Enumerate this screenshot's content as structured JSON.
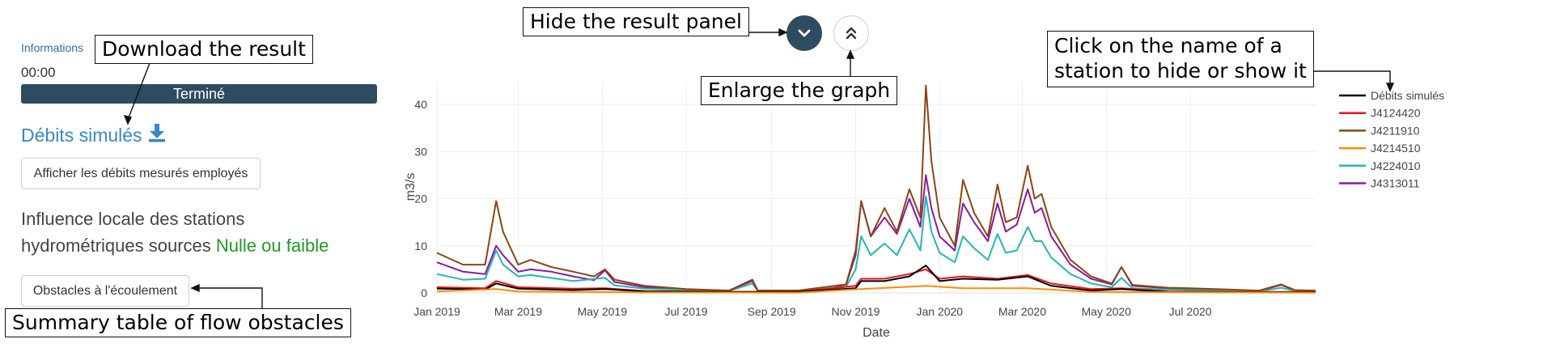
{
  "left_panel": {
    "info_label": "Informations",
    "timer": "00:00",
    "status": "Terminé",
    "result_link": "Débits simulés",
    "measured_button": "Afficher les débits mesurés employés",
    "influence_line1": "Influence locale des stations",
    "influence_line2": "hydrométriques sources",
    "influence_level": "Nulle ou faible",
    "influence_level_color": "#1f9a1f",
    "obstacles_button": "Obstacles à l'écoulement"
  },
  "controls": {
    "hide_icon": "chevron-down-icon",
    "enlarge_icon": "double-chevron-up-icon"
  },
  "callouts": {
    "download": "Download the result",
    "hide_panel": "Hide the result panel",
    "enlarge": "Enlarge the graph",
    "legend_line1": "Click on the name of a",
    "legend_line2": "station to hide or show it",
    "obstacles": "Summary table of flow obstacles"
  },
  "chart_data": {
    "type": "line",
    "xlabel": "Date",
    "ylabel": "m3/s",
    "ylim": [
      0,
      45
    ],
    "yticks": [
      0,
      10,
      20,
      30,
      40
    ],
    "x_range": [
      "2019-01-01",
      "2020-09-30"
    ],
    "xticks": [
      {
        "date": "2019-01-01",
        "label": "Jan 2019"
      },
      {
        "date": "2019-03-01",
        "label": "Mar 2019"
      },
      {
        "date": "2019-05-01",
        "label": "May 2019"
      },
      {
        "date": "2019-07-01",
        "label": "Jul 2019"
      },
      {
        "date": "2019-09-01",
        "label": "Sep 2019"
      },
      {
        "date": "2019-11-01",
        "label": "Nov 2019"
      },
      {
        "date": "2020-01-01",
        "label": "Jan 2020"
      },
      {
        "date": "2020-03-01",
        "label": "Mar 2020"
      },
      {
        "date": "2020-05-01",
        "label": "May 2020"
      },
      {
        "date": "2020-07-01",
        "label": "Jul 2020"
      }
    ],
    "grid": true,
    "legend_position": "right",
    "series": [
      {
        "name": "J4313011",
        "color": "#8b1a9b",
        "points": [
          [
            "2019-01-01",
            6.5
          ],
          [
            "2019-01-20",
            4.5
          ],
          [
            "2019-02-05",
            4.0
          ],
          [
            "2019-02-13",
            10.0
          ],
          [
            "2019-02-18",
            8.0
          ],
          [
            "2019-03-01",
            4.5
          ],
          [
            "2019-03-10",
            5.0
          ],
          [
            "2019-03-25",
            4.5
          ],
          [
            "2019-04-10",
            3.5
          ],
          [
            "2019-04-25",
            2.7
          ],
          [
            "2019-05-03",
            4.8
          ],
          [
            "2019-05-10",
            2.3
          ],
          [
            "2019-06-01",
            1.2
          ],
          [
            "2019-07-01",
            0.7
          ],
          [
            "2019-08-01",
            0.5
          ],
          [
            "2019-08-18",
            2.8
          ],
          [
            "2019-08-22",
            0.5
          ],
          [
            "2019-09-20",
            0.5
          ],
          [
            "2019-10-10",
            0.6
          ],
          [
            "2019-10-25",
            1.8
          ],
          [
            "2019-11-01",
            8.0
          ],
          [
            "2019-11-05",
            19.5
          ],
          [
            "2019-11-12",
            12.0
          ],
          [
            "2019-11-22",
            16.0
          ],
          [
            "2019-12-01",
            12.5
          ],
          [
            "2019-12-10",
            20.0
          ],
          [
            "2019-12-18",
            14.0
          ],
          [
            "2019-12-22",
            25.0
          ],
          [
            "2019-12-26",
            18.0
          ],
          [
            "2020-01-01",
            12.0
          ],
          [
            "2020-01-12",
            9.0
          ],
          [
            "2020-01-18",
            19.0
          ],
          [
            "2020-01-26",
            15.0
          ],
          [
            "2020-02-05",
            11.0
          ],
          [
            "2020-02-12",
            19.0
          ],
          [
            "2020-02-18",
            13.0
          ],
          [
            "2020-02-26",
            14.5
          ],
          [
            "2020-03-05",
            22.0
          ],
          [
            "2020-03-10",
            17.0
          ],
          [
            "2020-03-15",
            18.0
          ],
          [
            "2020-03-22",
            12.0
          ],
          [
            "2020-04-05",
            6.0
          ],
          [
            "2020-04-20",
            3.0
          ],
          [
            "2020-05-05",
            1.8
          ],
          [
            "2020-05-12",
            5.5
          ],
          [
            "2020-05-20",
            1.5
          ],
          [
            "2020-06-15",
            1.0
          ],
          [
            "2020-07-01",
            0.8
          ],
          [
            "2020-07-28",
            0.6
          ],
          [
            "2020-08-20",
            0.4
          ],
          [
            "2020-09-05",
            1.7
          ],
          [
            "2020-09-15",
            0.5
          ],
          [
            "2020-09-30",
            0.4
          ]
        ]
      },
      {
        "name": "J4224010",
        "color": "#25b5b5",
        "points": [
          [
            "2019-01-01",
            4.0
          ],
          [
            "2019-01-20",
            2.8
          ],
          [
            "2019-02-05",
            3.0
          ],
          [
            "2019-02-13",
            9.0
          ],
          [
            "2019-02-18",
            6.0
          ],
          [
            "2019-03-01",
            3.5
          ],
          [
            "2019-03-10",
            3.8
          ],
          [
            "2019-04-10",
            2.5
          ],
          [
            "2019-05-03",
            3.2
          ],
          [
            "2019-05-10",
            1.6
          ],
          [
            "2019-06-01",
            0.9
          ],
          [
            "2019-07-01",
            0.6
          ],
          [
            "2019-08-01",
            0.4
          ],
          [
            "2019-08-18",
            2.0
          ],
          [
            "2019-08-22",
            0.4
          ],
          [
            "2019-09-20",
            0.4
          ],
          [
            "2019-10-25",
            1.3
          ],
          [
            "2019-11-01",
            5.0
          ],
          [
            "2019-11-05",
            12.0
          ],
          [
            "2019-11-12",
            8.0
          ],
          [
            "2019-11-22",
            10.5
          ],
          [
            "2019-12-01",
            8.0
          ],
          [
            "2019-12-10",
            13.5
          ],
          [
            "2019-12-18",
            9.0
          ],
          [
            "2019-12-22",
            20.5
          ],
          [
            "2019-12-26",
            13.0
          ],
          [
            "2020-01-01",
            8.5
          ],
          [
            "2020-01-12",
            6.5
          ],
          [
            "2020-01-18",
            12.0
          ],
          [
            "2020-01-26",
            9.5
          ],
          [
            "2020-02-05",
            7.0
          ],
          [
            "2020-02-12",
            12.5
          ],
          [
            "2020-02-18",
            8.5
          ],
          [
            "2020-02-26",
            9.0
          ],
          [
            "2020-03-05",
            14.0
          ],
          [
            "2020-03-10",
            11.0
          ],
          [
            "2020-03-15",
            11.0
          ],
          [
            "2020-03-22",
            7.5
          ],
          [
            "2020-04-05",
            4.0
          ],
          [
            "2020-04-20",
            2.0
          ],
          [
            "2020-05-05",
            1.2
          ],
          [
            "2020-05-12",
            3.2
          ],
          [
            "2020-05-20",
            1.0
          ],
          [
            "2020-06-15",
            0.7
          ],
          [
            "2020-07-01",
            0.6
          ],
          [
            "2020-08-20",
            0.3
          ],
          [
            "2020-09-05",
            1.1
          ],
          [
            "2020-09-15",
            0.4
          ],
          [
            "2020-09-30",
            0.3
          ]
        ]
      },
      {
        "name": "J4211910",
        "color": "#8b4513",
        "points": [
          [
            "2019-01-01",
            8.5
          ],
          [
            "2019-01-20",
            6.0
          ],
          [
            "2019-02-05",
            6.0
          ],
          [
            "2019-02-13",
            19.5
          ],
          [
            "2019-02-18",
            13.0
          ],
          [
            "2019-03-01",
            6.0
          ],
          [
            "2019-03-10",
            7.0
          ],
          [
            "2019-03-25",
            5.5
          ],
          [
            "2019-04-10",
            4.5
          ],
          [
            "2019-04-25",
            3.5
          ],
          [
            "2019-05-03",
            5.0
          ],
          [
            "2019-05-10",
            2.8
          ],
          [
            "2019-06-01",
            1.5
          ],
          [
            "2019-07-01",
            0.8
          ],
          [
            "2019-08-01",
            0.5
          ],
          [
            "2019-08-18",
            2.5
          ],
          [
            "2019-08-22",
            0.5
          ],
          [
            "2019-09-20",
            0.5
          ],
          [
            "2019-10-25",
            1.8
          ],
          [
            "2019-11-01",
            9.0
          ],
          [
            "2019-11-05",
            19.5
          ],
          [
            "2019-11-12",
            12.0
          ],
          [
            "2019-11-22",
            18.0
          ],
          [
            "2019-12-01",
            13.0
          ],
          [
            "2019-12-10",
            22.0
          ],
          [
            "2019-12-18",
            16.0
          ],
          [
            "2019-12-22",
            44.0
          ],
          [
            "2019-12-26",
            28.0
          ],
          [
            "2020-01-01",
            16.0
          ],
          [
            "2020-01-12",
            10.0
          ],
          [
            "2020-01-18",
            24.0
          ],
          [
            "2020-01-26",
            17.0
          ],
          [
            "2020-02-05",
            12.0
          ],
          [
            "2020-02-12",
            23.0
          ],
          [
            "2020-02-18",
            15.0
          ],
          [
            "2020-02-26",
            16.0
          ],
          [
            "2020-03-05",
            27.0
          ],
          [
            "2020-03-10",
            20.0
          ],
          [
            "2020-03-15",
            21.0
          ],
          [
            "2020-03-22",
            14.0
          ],
          [
            "2020-04-05",
            7.0
          ],
          [
            "2020-04-20",
            3.5
          ],
          [
            "2020-05-05",
            2.0
          ],
          [
            "2020-05-12",
            5.5
          ],
          [
            "2020-05-20",
            1.7
          ],
          [
            "2020-06-15",
            1.1
          ],
          [
            "2020-07-01",
            1.0
          ],
          [
            "2020-08-20",
            0.5
          ],
          [
            "2020-09-05",
            1.8
          ],
          [
            "2020-09-15",
            0.6
          ],
          [
            "2020-09-30",
            0.5
          ]
        ]
      },
      {
        "name": "J4124420",
        "color": "#e8151b",
        "points": [
          [
            "2019-01-01",
            1.2
          ],
          [
            "2019-02-05",
            1.0
          ],
          [
            "2019-02-13",
            2.5
          ],
          [
            "2019-03-01",
            1.2
          ],
          [
            "2019-04-10",
            0.9
          ],
          [
            "2019-05-03",
            1.0
          ],
          [
            "2019-06-01",
            0.4
          ],
          [
            "2019-08-01",
            0.2
          ],
          [
            "2019-09-20",
            0.2
          ],
          [
            "2019-11-01",
            1.5
          ],
          [
            "2019-11-05",
            3.0
          ],
          [
            "2019-11-22",
            3.0
          ],
          [
            "2019-12-10",
            4.0
          ],
          [
            "2019-12-22",
            5.0
          ],
          [
            "2020-01-01",
            3.0
          ],
          [
            "2020-01-18",
            3.5
          ],
          [
            "2020-02-12",
            3.0
          ],
          [
            "2020-03-05",
            3.8
          ],
          [
            "2020-03-22",
            2.0
          ],
          [
            "2020-04-20",
            0.8
          ],
          [
            "2020-05-12",
            1.0
          ],
          [
            "2020-06-15",
            0.3
          ],
          [
            "2020-08-20",
            0.2
          ],
          [
            "2020-09-30",
            0.2
          ]
        ]
      },
      {
        "name": "Débits simulés",
        "color": "#000000",
        "points": [
          [
            "2019-01-01",
            0.9
          ],
          [
            "2019-02-05",
            0.7
          ],
          [
            "2019-02-13",
            2.0
          ],
          [
            "2019-03-01",
            0.9
          ],
          [
            "2019-04-10",
            0.6
          ],
          [
            "2019-05-03",
            0.8
          ],
          [
            "2019-06-01",
            0.3
          ],
          [
            "2019-08-01",
            0.2
          ],
          [
            "2019-09-20",
            0.2
          ],
          [
            "2019-11-01",
            1.0
          ],
          [
            "2019-11-05",
            2.5
          ],
          [
            "2019-11-22",
            2.5
          ],
          [
            "2019-12-10",
            3.5
          ],
          [
            "2019-12-22",
            5.8
          ],
          [
            "2020-01-01",
            2.5
          ],
          [
            "2020-01-18",
            3.0
          ],
          [
            "2020-02-12",
            2.8
          ],
          [
            "2020-03-05",
            3.5
          ],
          [
            "2020-03-22",
            1.5
          ],
          [
            "2020-04-20",
            0.5
          ],
          [
            "2020-05-12",
            0.8
          ],
          [
            "2020-06-15",
            0.2
          ],
          [
            "2020-08-20",
            0.15
          ],
          [
            "2020-09-30",
            0.15
          ]
        ]
      },
      {
        "name": "J4214510",
        "color": "#ff8c00",
        "points": [
          [
            "2019-01-01",
            0.3
          ],
          [
            "2019-02-13",
            0.8
          ],
          [
            "2019-03-01",
            0.3
          ],
          [
            "2019-06-01",
            0.1
          ],
          [
            "2019-09-20",
            0.05
          ],
          [
            "2019-11-05",
            0.8
          ],
          [
            "2019-12-22",
            1.5
          ],
          [
            "2020-01-18",
            1.0
          ],
          [
            "2020-03-05",
            1.0
          ],
          [
            "2020-04-20",
            0.2
          ],
          [
            "2020-09-30",
            0.05
          ]
        ]
      }
    ]
  }
}
